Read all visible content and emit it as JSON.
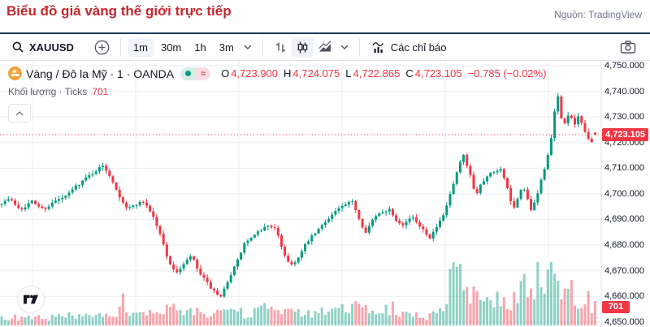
{
  "header": {
    "title": "Biểu đồ giá vàng thế giới trực tiếp",
    "source": "Nguồn: TradingView"
  },
  "toolbar": {
    "symbol": "XAUUSD",
    "timeframes": [
      {
        "label": "1m",
        "active": true
      },
      {
        "label": "30m",
        "active": false
      },
      {
        "label": "1h",
        "active": false
      },
      {
        "label": "3m",
        "active": false
      }
    ],
    "indicators_label": "Các chỉ báo"
  },
  "legend": {
    "symbol_title": "Vàng / Đô la Mỹ · 1 · OANDA",
    "status_approx_symbol": "≈",
    "ohlc": {
      "o_label": "O",
      "o": "4,723.900",
      "h_label": "H",
      "h": "4,724.075",
      "l_label": "L",
      "l": "4,722.865",
      "c_label": "C",
      "c": "4,723.105",
      "change": "−0.785 (−0.02%)"
    },
    "volume_row": {
      "label": "Khối lượng · Ticks",
      "value": "701"
    }
  },
  "chart_data": {
    "type": "candlestick",
    "symbol": "XAUUSD",
    "interval": "1m",
    "exchange": "OANDA",
    "title": "Vàng / Đô la Mỹ",
    "price_axis": {
      "labels": [
        "4,750.000",
        "4,740.000",
        "4,730.000",
        "4,720.000",
        "4,710.000",
        "4,700.000",
        "4,690.000",
        "4,680.000",
        "4,670.000",
        "4,660.000",
        "4,650.000"
      ],
      "max": 4750,
      "min": 4650,
      "step": 10
    },
    "last_price": 4723.105,
    "last_price_label": "4,723.105",
    "last_volume": 701,
    "last_volume_label": "701",
    "last_candle": {
      "o": 4723.9,
      "h": 4724.075,
      "l": 4722.865,
      "c": 4723.105
    },
    "colors": {
      "up": "#089981",
      "down": "#f23645",
      "price_line": "#f23645",
      "grid": "#eceef2",
      "axis_border": "#e0e3eb"
    },
    "vertical_gridlines_x": [
      40,
      167,
      294,
      421,
      548,
      675
    ],
    "price_path": [
      [
        0,
        4696
      ],
      [
        14,
        4698
      ],
      [
        28,
        4694
      ],
      [
        42,
        4697
      ],
      [
        56,
        4694
      ],
      [
        70,
        4697
      ],
      [
        84,
        4699
      ],
      [
        96,
        4703
      ],
      [
        108,
        4706
      ],
      [
        120,
        4709
      ],
      [
        130,
        4711
      ],
      [
        140,
        4706
      ],
      [
        150,
        4699
      ],
      [
        160,
        4694
      ],
      [
        170,
        4696
      ],
      [
        180,
        4697
      ],
      [
        190,
        4692
      ],
      [
        200,
        4684
      ],
      [
        210,
        4674
      ],
      [
        218,
        4669
      ],
      [
        228,
        4672
      ],
      [
        238,
        4676
      ],
      [
        248,
        4669
      ],
      [
        258,
        4665
      ],
      [
        268,
        4661
      ],
      [
        274,
        4659
      ],
      [
        284,
        4667
      ],
      [
        294,
        4673
      ],
      [
        304,
        4681
      ],
      [
        314,
        4683
      ],
      [
        324,
        4686
      ],
      [
        334,
        4688
      ],
      [
        342,
        4686
      ],
      [
        352,
        4677
      ],
      [
        360,
        4672
      ],
      [
        370,
        4675
      ],
      [
        380,
        4681
      ],
      [
        392,
        4685
      ],
      [
        405,
        4690
      ],
      [
        418,
        4694
      ],
      [
        430,
        4696
      ],
      [
        437,
        4697
      ],
      [
        445,
        4690
      ],
      [
        452,
        4685
      ],
      [
        462,
        4690
      ],
      [
        472,
        4693
      ],
      [
        482,
        4694
      ],
      [
        490,
        4690
      ],
      [
        500,
        4688
      ],
      [
        508,
        4691
      ],
      [
        516,
        4689
      ],
      [
        524,
        4686
      ],
      [
        532,
        4683
      ],
      [
        540,
        4687
      ],
      [
        548,
        4691
      ],
      [
        556,
        4699
      ],
      [
        564,
        4707
      ],
      [
        570,
        4713
      ],
      [
        574,
        4715
      ],
      [
        578,
        4710
      ],
      [
        583,
        4706
      ],
      [
        588,
        4699
      ],
      [
        594,
        4704
      ],
      [
        600,
        4706
      ],
      [
        606,
        4708
      ],
      [
        612,
        4709
      ],
      [
        618,
        4710
      ],
      [
        624,
        4706
      ],
      [
        630,
        4698
      ],
      [
        636,
        4694
      ],
      [
        641,
        4699
      ],
      [
        646,
        4703
      ],
      [
        651,
        4699
      ],
      [
        656,
        4693
      ],
      [
        661,
        4697
      ],
      [
        666,
        4702
      ],
      [
        671,
        4708
      ],
      [
        676,
        4714
      ],
      [
        681,
        4721
      ],
      [
        685,
        4731
      ],
      [
        688,
        4740
      ],
      [
        691,
        4735
      ],
      [
        694,
        4729
      ],
      [
        698,
        4727
      ],
      [
        702,
        4731
      ],
      [
        706,
        4729
      ],
      [
        710,
        4727
      ],
      [
        714,
        4730
      ],
      [
        718,
        4728
      ],
      [
        722,
        4725
      ],
      [
        726,
        4722
      ],
      [
        730,
        4719
      ],
      [
        734,
        4722
      ],
      [
        738,
        4723.1
      ]
    ],
    "volume_profile": [
      [
        0,
        10
      ],
      [
        40,
        9
      ],
      [
        80,
        12
      ],
      [
        110,
        10
      ],
      [
        140,
        12
      ],
      [
        147,
        48
      ],
      [
        154,
        14
      ],
      [
        170,
        12
      ],
      [
        190,
        16
      ],
      [
        210,
        20
      ],
      [
        230,
        16
      ],
      [
        250,
        18
      ],
      [
        270,
        22
      ],
      [
        290,
        16
      ],
      [
        310,
        14
      ],
      [
        327,
        30
      ],
      [
        334,
        16
      ],
      [
        350,
        18
      ],
      [
        370,
        14
      ],
      [
        390,
        16
      ],
      [
        410,
        18
      ],
      [
        425,
        22
      ],
      [
        432,
        36
      ],
      [
        440,
        20
      ],
      [
        460,
        16
      ],
      [
        475,
        20
      ],
      [
        483,
        34
      ],
      [
        490,
        14
      ],
      [
        500,
        12
      ],
      [
        510,
        14
      ],
      [
        520,
        12
      ],
      [
        530,
        14
      ],
      [
        540,
        16
      ],
      [
        548,
        30
      ],
      [
        552,
        60
      ],
      [
        558,
        68
      ],
      [
        564,
        55
      ],
      [
        570,
        62
      ],
      [
        576,
        48
      ],
      [
        582,
        38
      ],
      [
        590,
        30
      ],
      [
        598,
        26
      ],
      [
        606,
        34
      ],
      [
        614,
        28
      ],
      [
        622,
        36
      ],
      [
        630,
        30
      ],
      [
        638,
        42
      ],
      [
        645,
        55
      ],
      [
        652,
        48
      ],
      [
        658,
        62
      ],
      [
        664,
        55
      ],
      [
        670,
        68
      ],
      [
        676,
        60
      ],
      [
        682,
        72
      ],
      [
        688,
        65
      ],
      [
        694,
        50
      ],
      [
        700,
        58
      ],
      [
        706,
        45
      ],
      [
        712,
        38
      ],
      [
        718,
        42
      ],
      [
        724,
        30
      ],
      [
        730,
        26
      ],
      [
        734,
        32
      ],
      [
        738,
        30
      ]
    ]
  }
}
